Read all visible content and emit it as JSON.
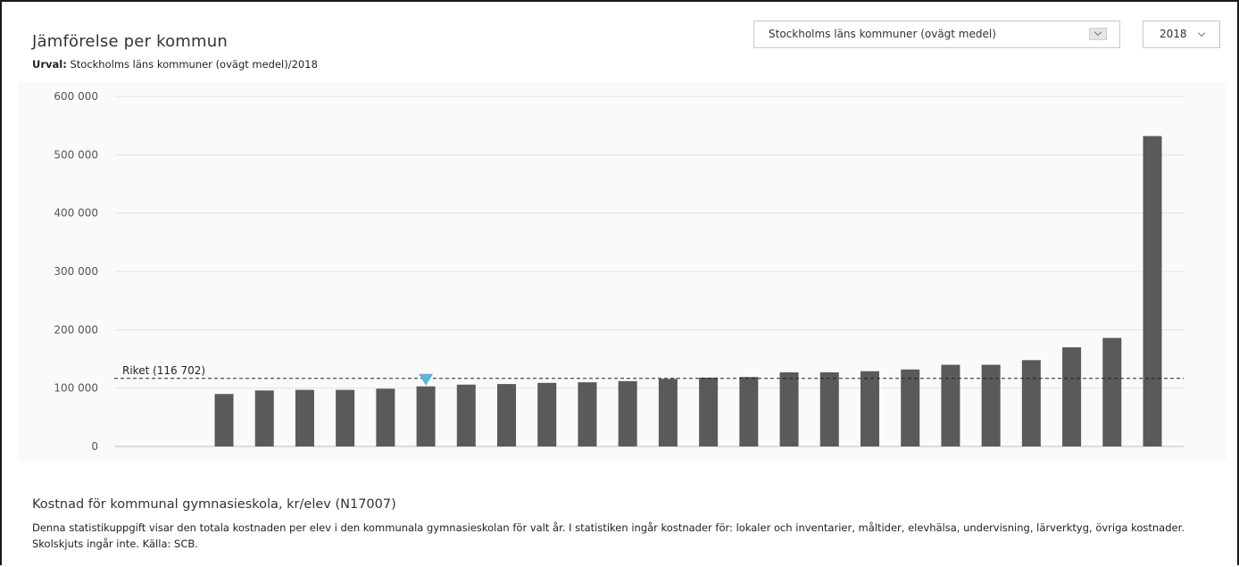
{
  "header": {
    "title": "Jämförelse per kommun",
    "urval_label": "Urval:",
    "urval_value": "Stockholms läns kommuner (ovägt medel)/2018"
  },
  "controls": {
    "region_select": "Stockholms läns kommuner (ovägt medel)",
    "year_select": "2018"
  },
  "colors": {
    "bar": "#5a5a5a",
    "marker": "#5bb3e0",
    "reference_line": "#222222",
    "grid": "#e2e2e2"
  },
  "chart_data": {
    "type": "bar",
    "title": "",
    "xlabel": "",
    "ylabel": "",
    "ylim": [
      0,
      600000
    ],
    "yticks": [
      0,
      100000,
      200000,
      300000,
      400000,
      500000,
      600000
    ],
    "ytick_labels": [
      "0",
      "100 000",
      "200 000",
      "300 000",
      "400 000",
      "500 000",
      "600 000"
    ],
    "grid": true,
    "values": [
      90000,
      96000,
      97000,
      97000,
      99000,
      103000,
      106000,
      107000,
      109000,
      110000,
      112000,
      116000,
      118000,
      119000,
      127000,
      127000,
      129000,
      132000,
      140000,
      140000,
      148000,
      170000,
      186000,
      532000
    ],
    "highlight_index": 5,
    "reference_line": {
      "label": "Riket (116 702)",
      "value": 116702
    }
  },
  "footer": {
    "measure_title": "Kostnad för kommunal gymnasieskola, kr/elev (N17007)",
    "measure_description": "Denna statistikuppgift visar den totala kostnaden per elev i den kommunala gymnasieskolan för valt år. I statistiken ingår kostnader för: lokaler och inventarier, måltider, elevhälsa, undervisning, lärverktyg, övriga kostnader. Skolskjuts ingår inte. Källa: SCB."
  }
}
